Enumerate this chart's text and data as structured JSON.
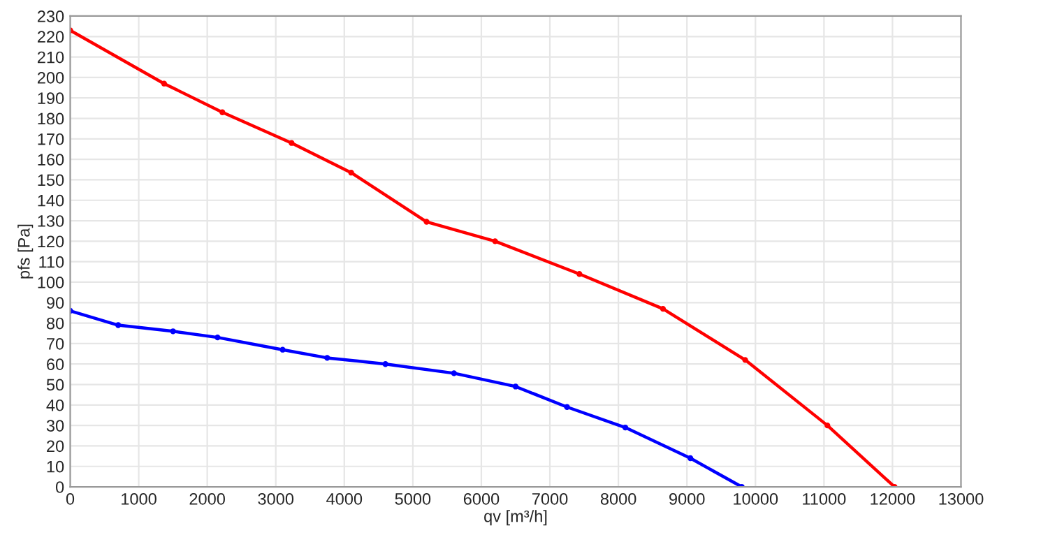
{
  "chart_data": {
    "type": "line",
    "xlabel": "qv [m³/h]",
    "ylabel": "pfs [Pa]",
    "xlim": [
      0,
      13000
    ],
    "xticks": [
      0,
      1000,
      2000,
      3000,
      4000,
      5000,
      6000,
      7000,
      8000,
      9000,
      10000,
      11000,
      12000,
      13000
    ],
    "ylim": [
      0,
      230
    ],
    "yticks": [
      0,
      10,
      20,
      30,
      40,
      50,
      60,
      70,
      80,
      90,
      100,
      110,
      120,
      130,
      140,
      150,
      160,
      170,
      180,
      190,
      200,
      210,
      220,
      230
    ],
    "grid": true,
    "marker": "circle",
    "line_style": "solid",
    "series": [
      {
        "color": "#ff0000",
        "x": [
          0,
          1370,
          2220,
          3230,
          4100,
          5200,
          6200,
          7430,
          8650,
          9850,
          11050,
          12030
        ],
        "values": [
          223,
          197,
          183,
          168,
          153.5,
          129.5,
          120,
          104,
          87,
          62,
          30,
          0
        ]
      },
      {
        "color": "#0000ff",
        "x": [
          0,
          700,
          1500,
          2150,
          3100,
          3750,
          4600,
          5600,
          6500,
          7250,
          8100,
          9050,
          9800
        ],
        "values": [
          86,
          79,
          76,
          73,
          67,
          63,
          60,
          55.5,
          49,
          39,
          29,
          14,
          0
        ]
      }
    ]
  }
}
